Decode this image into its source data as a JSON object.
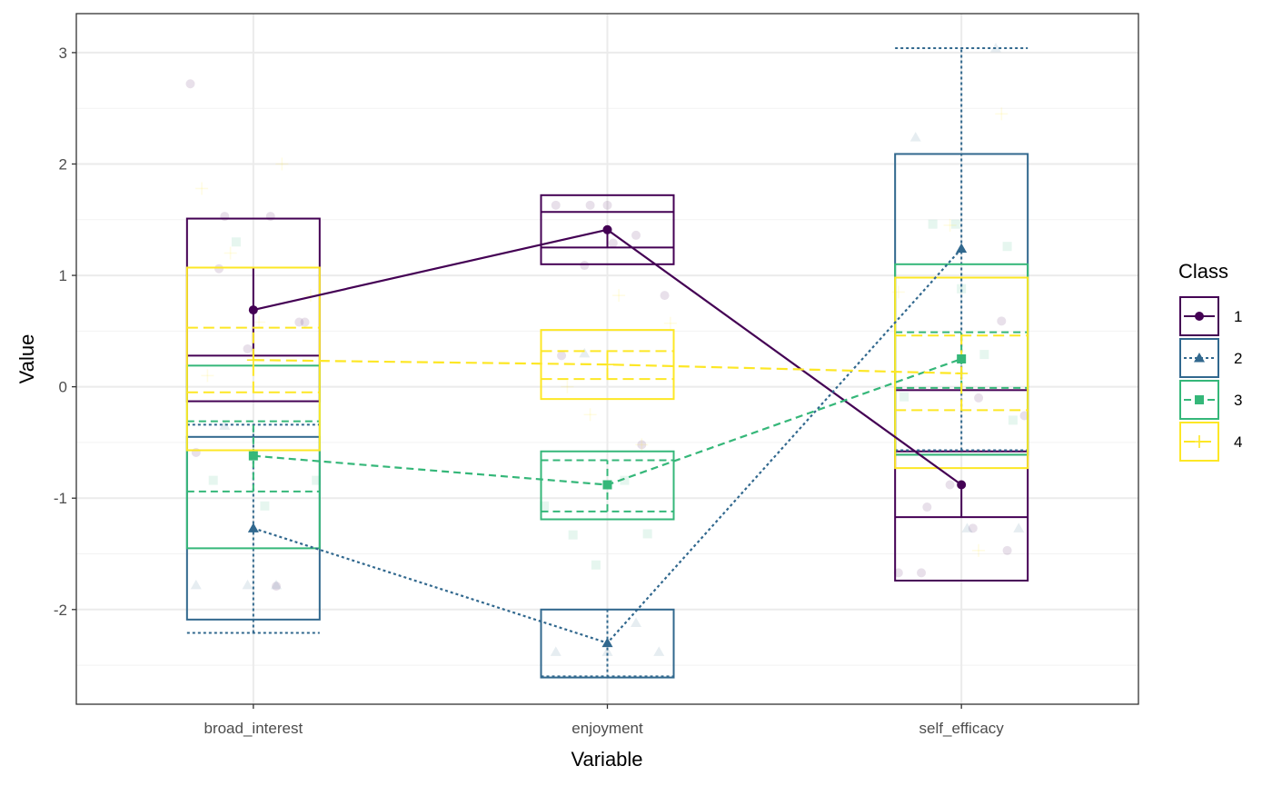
{
  "chart_data": {
    "type": "box",
    "xlabel": "Variable",
    "ylabel": "Value",
    "categories": [
      "broad_interest",
      "enjoyment",
      "self_efficacy"
    ],
    "ylim": [
      -2.85,
      3.35
    ],
    "yticks": [
      -2,
      -1,
      0,
      1,
      2,
      3
    ],
    "ytick_labels": [
      "-2",
      "-1",
      "0",
      "1",
      "2",
      "3"
    ],
    "grid": true,
    "legend": {
      "title": "Class",
      "position": "right",
      "entries": [
        "1",
        "2",
        "3",
        "4"
      ]
    },
    "series": [
      {
        "name": "1",
        "color": "#440154",
        "dash": "solid",
        "shape": "circle",
        "means": [
          0.69,
          1.41,
          -0.88
        ],
        "boxes": [
          {
            "lower": -0.13,
            "upper": 1.51,
            "lines": [
              0.28
            ]
          },
          {
            "lower": 1.1,
            "upper": 1.72,
            "lines": [
              1.25,
              1.57
            ]
          },
          {
            "lower": -1.74,
            "upper": -0.03,
            "lines": [
              -0.58,
              -1.17
            ]
          }
        ],
        "whiskers": [
          [
            0.28,
            1.07
          ],
          [
            1.25,
            1.41
          ],
          [
            -1.17,
            -0.88
          ]
        ]
      },
      {
        "name": "2",
        "color": "#31688E",
        "dash": "dotted",
        "shape": "triangle",
        "means": [
          -1.27,
          -2.3,
          1.24
        ],
        "boxes": [
          {
            "lower": -2.09,
            "upper": -0.45,
            "lines": [
              -0.34,
              -2.21
            ]
          },
          {
            "lower": -2.61,
            "upper": -2.0,
            "lines": [
              -2.6
            ]
          },
          {
            "lower": -0.61,
            "upper": 2.09,
            "lines": [
              -0.57,
              3.04
            ]
          }
        ],
        "whiskers": [
          [
            -2.21,
            -0.34
          ],
          [
            -2.61,
            -2.0
          ],
          [
            -0.57,
            3.04
          ]
        ]
      },
      {
        "name": "3",
        "color": "#35B779",
        "dash": "dashed",
        "shape": "square",
        "means": [
          -0.62,
          -0.88,
          0.25
        ],
        "boxes": [
          {
            "lower": -1.45,
            "upper": 0.19,
            "lines": [
              -0.31,
              -0.94
            ]
          },
          {
            "lower": -1.19,
            "upper": -0.58,
            "lines": [
              -0.66,
              -1.12
            ]
          },
          {
            "lower": -0.61,
            "upper": 1.1,
            "lines": [
              0.49,
              -0.01
            ]
          }
        ],
        "whiskers": [
          [
            -0.94,
            -0.31
          ],
          [
            -1.12,
            -0.66
          ],
          [
            -0.01,
            0.49
          ]
        ]
      },
      {
        "name": "4",
        "color": "#FDE725",
        "dash": "longdash",
        "shape": "plus",
        "means": [
          0.24,
          0.2,
          0.12
        ],
        "boxes": [
          {
            "lower": -0.57,
            "upper": 1.07,
            "lines": [
              0.53,
              -0.05
            ]
          },
          {
            "lower": -0.11,
            "upper": 0.51,
            "lines": [
              0.32,
              0.07
            ]
          },
          {
            "lower": -0.73,
            "upper": 0.98,
            "lines": [
              0.46,
              -0.21
            ]
          }
        ],
        "whiskers": [
          [
            -0.05,
            0.53
          ],
          [
            0.07,
            0.32
          ],
          [
            -0.21,
            0.46
          ]
        ]
      }
    ],
    "jitter_points": [
      {
        "s": 0,
        "v": 2.72,
        "c": 0
      },
      {
        "s": 0,
        "v": 1.53,
        "c": 0
      },
      {
        "s": 0,
        "v": 1.06,
        "c": 0
      },
      {
        "s": 0,
        "v": 0.58,
        "c": 0
      },
      {
        "s": 0,
        "v": 0.34,
        "c": 0
      },
      {
        "s": 0,
        "v": -0.59,
        "c": 0
      },
      {
        "s": 0,
        "v": -1.79,
        "c": 0
      },
      {
        "s": 0,
        "v": 1.53,
        "c": 0
      },
      {
        "s": 0,
        "v": 0.58,
        "c": 0
      },
      {
        "s": 0,
        "v": 1.63,
        "c": 1
      },
      {
        "s": 0,
        "v": 1.63,
        "c": 1
      },
      {
        "s": 0,
        "v": 1.36,
        "c": 1
      },
      {
        "s": 0,
        "v": 1.09,
        "c": 1
      },
      {
        "s": 0,
        "v": 0.82,
        "c": 1
      },
      {
        "s": 0,
        "v": 1.29,
        "c": 1
      },
      {
        "s": 0,
        "v": 0.28,
        "c": 1
      },
      {
        "s": 0,
        "v": -0.52,
        "c": 1
      },
      {
        "s": 0,
        "v": 1.63,
        "c": 1
      },
      {
        "s": 0,
        "v": -0.26,
        "c": 2
      },
      {
        "s": 0,
        "v": -1.27,
        "c": 2
      },
      {
        "s": 0,
        "v": -1.67,
        "c": 2
      },
      {
        "s": 0,
        "v": 0.59,
        "c": 2
      },
      {
        "s": 0,
        "v": -0.88,
        "c": 2
      },
      {
        "s": 0,
        "v": -1.67,
        "c": 2
      },
      {
        "s": 0,
        "v": -0.1,
        "c": 2
      },
      {
        "s": 0,
        "v": -1.08,
        "c": 2
      },
      {
        "s": 0,
        "v": -1.47,
        "c": 2
      },
      {
        "s": 1,
        "v": -1.78,
        "c": 0
      },
      {
        "s": 1,
        "v": -1.78,
        "c": 0
      },
      {
        "s": 1,
        "v": -1.78,
        "c": 0
      },
      {
        "s": 1,
        "v": -0.35,
        "c": 0
      },
      {
        "s": 1,
        "v": -2.38,
        "c": 1
      },
      {
        "s": 1,
        "v": -2.38,
        "c": 1
      },
      {
        "s": 1,
        "v": -2.38,
        "c": 1
      },
      {
        "s": 1,
        "v": -2.12,
        "c": 1
      },
      {
        "s": 1,
        "v": 0.3,
        "c": 1
      },
      {
        "s": 1,
        "v": -1.27,
        "c": 2
      },
      {
        "s": 1,
        "v": -1.27,
        "c": 2
      },
      {
        "s": 1,
        "v": 2.24,
        "c": 2
      },
      {
        "s": 1,
        "v": 3.04,
        "c": 2
      },
      {
        "s": 2,
        "v": 1.3,
        "c": 0
      },
      {
        "s": 2,
        "v": -0.84,
        "c": 0
      },
      {
        "s": 2,
        "v": -1.07,
        "c": 0
      },
      {
        "s": 2,
        "v": -0.84,
        "c": 0
      },
      {
        "s": 2,
        "v": -1.32,
        "c": 1
      },
      {
        "s": 2,
        "v": -1.6,
        "c": 1
      },
      {
        "s": 2,
        "v": -1.07,
        "c": 1
      },
      {
        "s": 2,
        "v": -0.84,
        "c": 1
      },
      {
        "s": 2,
        "v": -1.33,
        "c": 1
      },
      {
        "s": 2,
        "v": 1.26,
        "c": 2
      },
      {
        "s": 2,
        "v": 1.46,
        "c": 2
      },
      {
        "s": 2,
        "v": -0.09,
        "c": 2
      },
      {
        "s": 2,
        "v": 0.29,
        "c": 2
      },
      {
        "s": 2,
        "v": 1.46,
        "c": 2
      },
      {
        "s": 2,
        "v": -0.3,
        "c": 2
      },
      {
        "s": 2,
        "v": 0.88,
        "c": 2
      },
      {
        "s": 3,
        "v": 1.78,
        "c": 0
      },
      {
        "s": 3,
        "v": 2.0,
        "c": 0
      },
      {
        "s": 3,
        "v": 1.2,
        "c": 0
      },
      {
        "s": 3,
        "v": 0.82,
        "c": 0
      },
      {
        "s": 3,
        "v": 0.58,
        "c": 0
      },
      {
        "s": 3,
        "v": 0.1,
        "c": 0
      },
      {
        "s": 3,
        "v": -0.52,
        "c": 1
      },
      {
        "s": 3,
        "v": -0.25,
        "c": 1
      },
      {
        "s": 3,
        "v": 0.57,
        "c": 1
      },
      {
        "s": 3,
        "v": 0.82,
        "c": 1
      },
      {
        "s": 3,
        "v": 0.0,
        "c": 1
      },
      {
        "s": 3,
        "v": 2.45,
        "c": 2
      },
      {
        "s": 3,
        "v": 1.45,
        "c": 2
      },
      {
        "s": 3,
        "v": 0.85,
        "c": 2
      },
      {
        "s": 3,
        "v": -1.47,
        "c": 2
      }
    ]
  }
}
